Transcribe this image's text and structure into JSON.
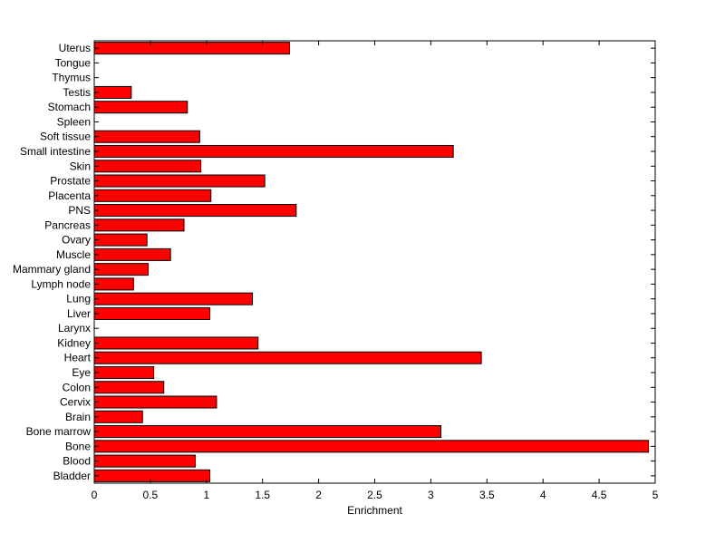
{
  "chart_data": {
    "type": "bar",
    "orientation": "horizontal",
    "title": "",
    "xlabel": "Enrichment",
    "ylabel": "",
    "xlim": [
      0,
      5
    ],
    "xticks": [
      "0",
      "0.5",
      "1",
      "1.5",
      "2",
      "2.5",
      "3",
      "3.5",
      "4",
      "4.5",
      "5"
    ],
    "grid": false,
    "bar_color": "#ff0000",
    "edge_color": "#000000",
    "categories": [
      "Bladder",
      "Blood",
      "Bone",
      "Bone marrow",
      "Brain",
      "Cervix",
      "Colon",
      "Eye",
      "Heart",
      "Kidney",
      "Larynx",
      "Liver",
      "Lung",
      "Lymph node",
      "Mammary gland",
      "Muscle",
      "Ovary",
      "Pancreas",
      "PNS",
      "Placenta",
      "Prostate",
      "Skin",
      "Small intestine",
      "Soft tissue",
      "Spleen",
      "Stomach",
      "Testis",
      "Thymus",
      "Tongue",
      "Uterus"
    ],
    "values": [
      1.03,
      0.9,
      4.94,
      3.09,
      0.43,
      1.09,
      0.62,
      0.53,
      3.45,
      1.46,
      0,
      1.03,
      1.41,
      0.35,
      0.48,
      0.68,
      0.47,
      0.8,
      1.8,
      1.04,
      1.52,
      0.95,
      3.2,
      0.94,
      0,
      0.83,
      0.33,
      0,
      0,
      1.74
    ]
  }
}
